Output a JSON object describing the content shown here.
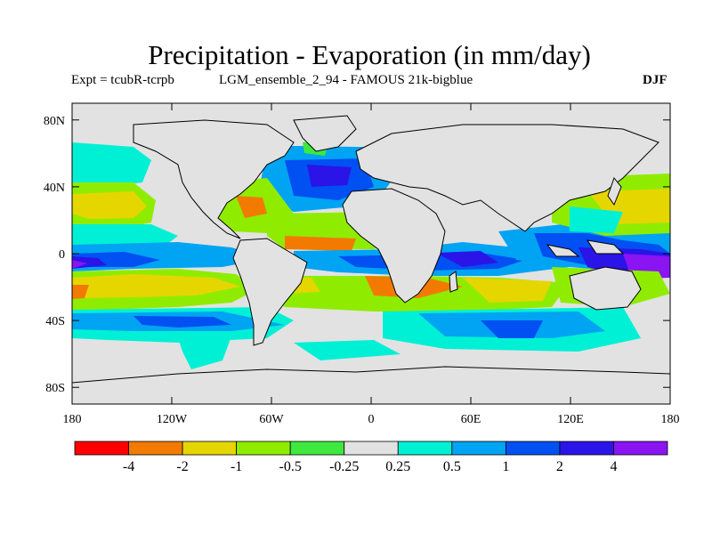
{
  "title": "Precipitation - Evaporation (in mm/day)",
  "experiment": "Expt = tcubR-tcrpb",
  "run": "LGM_ensemble_2_94 - FAMOUS 21k-bigblue",
  "season": "DJF",
  "axes": {
    "x_ticks": [
      "180",
      "120W",
      "60W",
      "0",
      "60E",
      "120E",
      "180"
    ],
    "y_ticks": [
      "80N",
      "40N",
      "0",
      "40S",
      "80S"
    ]
  },
  "colorbar": {
    "colors": [
      "#ff0000",
      "#f27a00",
      "#e6d600",
      "#8fec00",
      "#3ee83e",
      "#e2e2e2",
      "#00f0d6",
      "#00a4f2",
      "#0050f2",
      "#2a14e8",
      "#8a14f2"
    ],
    "labels": [
      "-4",
      "-2",
      "-1",
      "-0.5",
      "-0.25",
      "0.25",
      "0.5",
      "1",
      "2",
      "4"
    ]
  },
  "colors": {
    "land": "#e2e2e2",
    "coast": "#000000"
  }
}
